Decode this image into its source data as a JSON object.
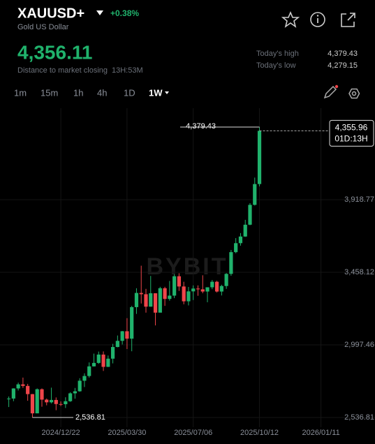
{
  "header": {
    "symbol": "XAUUSD+",
    "change": "+0.38%",
    "name": "Gold US Dollar",
    "price": "4,356.11",
    "closing_label": "Distance to market closing",
    "closing_time": "13H:53M",
    "stats": [
      {
        "label": "Today's high",
        "value": "4,379.43"
      },
      {
        "label": "Today's low",
        "value": "4,279.15"
      }
    ],
    "timeframes": [
      "1m",
      "15m",
      "1h",
      "4h",
      "1D",
      "1W"
    ]
  },
  "chart_data": {
    "type": "candlestick",
    "watermark": "BYBIT",
    "up_color": "#20b26c",
    "down_color": "#ef454a",
    "grid": true,
    "x": [
      "2024/10/06",
      "2024/10/13",
      "2024/10/20",
      "2024/10/27",
      "2024/11/03",
      "2024/11/10",
      "2024/11/17",
      "2024/11/24",
      "2024/12/01",
      "2024/12/08",
      "2024/12/15",
      "2024/12/22",
      "2024/12/29",
      "2025/01/05",
      "2025/01/12",
      "2025/01/19",
      "2025/01/26",
      "2025/02/02",
      "2025/02/09",
      "2025/02/16",
      "2025/02/23",
      "2025/03/02",
      "2025/03/09",
      "2025/03/16",
      "2025/03/23",
      "2025/03/30",
      "2025/04/06",
      "2025/04/13",
      "2025/04/20",
      "2025/04/27",
      "2025/05/04",
      "2025/05/11",
      "2025/05/18",
      "2025/05/25",
      "2025/06/01",
      "2025/06/08",
      "2025/06/15",
      "2025/06/22",
      "2025/06/29",
      "2025/07/06",
      "2025/07/13",
      "2025/07/20",
      "2025/07/27",
      "2025/08/03",
      "2025/08/10",
      "2025/08/17",
      "2025/08/24",
      "2025/08/31",
      "2025/09/07",
      "2025/09/14",
      "2025/09/21",
      "2025/09/28",
      "2025/10/05",
      "2025/10/12"
    ],
    "open": [
      2653,
      2657,
      2721,
      2747,
      2737,
      2685,
      2563,
      2716,
      2650,
      2633,
      2648,
      2622,
      2621,
      2640,
      2690,
      2703,
      2770,
      2800,
      2861,
      2883,
      2936,
      2858,
      2910,
      2984,
      3023,
      3084,
      3037,
      3237,
      3327,
      3319,
      3240,
      3325,
      3202,
      3357,
      3289,
      3310,
      3433,
      3368,
      3274,
      3337,
      3355,
      3350,
      3336,
      3363,
      3398,
      3336,
      3371,
      3448,
      3586,
      3643,
      3685,
      3760,
      3886,
      4018
    ],
    "high": [
      2670,
      2722,
      2758,
      2790,
      2750,
      2686,
      2721,
      2721,
      2657,
      2726,
      2664,
      2639,
      2665,
      2697,
      2724,
      2786,
      2817,
      2886,
      2942,
      2955,
      2956,
      2930,
      3004,
      3057,
      3086,
      3167,
      3245,
      3357,
      3500,
      3353,
      3435,
      3325,
      3366,
      3366,
      3403,
      3446,
      3452,
      3398,
      3365,
      3375,
      3375,
      3439,
      3363,
      3409,
      3404,
      3379,
      3453,
      3600,
      3675,
      3707,
      3791,
      3897,
      4059,
      4379.43
    ],
    "low": [
      2603,
      2640,
      2708,
      2724,
      2643,
      2536.81,
      2563,
      2605,
      2614,
      2626,
      2583,
      2609,
      2597,
      2636,
      2656,
      2700,
      2730,
      2790,
      2860,
      2877,
      2832,
      2857,
      2880,
      2982,
      3000,
      2971,
      2957,
      3194,
      3260,
      3202,
      3240,
      3121,
      3205,
      3245,
      3278,
      3294,
      3340,
      3255,
      3248,
      3282,
      3309,
      3325,
      3268,
      3351,
      3330,
      3311,
      3353,
      3436,
      3579,
      3627,
      3683,
      3757,
      3882,
      4003
    ],
    "close": [
      2657,
      2721,
      2747,
      2737,
      2685,
      2563,
      2716,
      2650,
      2633,
      2648,
      2622,
      2621,
      2640,
      2690,
      2703,
      2770,
      2800,
      2861,
      2883,
      2936,
      2858,
      2910,
      2984,
      3023,
      3084,
      3037,
      3237,
      3327,
      3319,
      3240,
      3325,
      3202,
      3357,
      3289,
      3310,
      3433,
      3368,
      3274,
      3337,
      3355,
      3350,
      3336,
      3363,
      3398,
      3336,
      3371,
      3448,
      3586,
      3643,
      3685,
      3760,
      3886,
      4018,
      4355.96
    ],
    "xlim": [
      "2024/09/23",
      "2026/04/01"
    ],
    "xticks": [
      "2024/12/22",
      "2025/03/30",
      "2025/07/06",
      "2025/10/12",
      "2026/01/11"
    ],
    "ylim": [
      2474.8,
      4499.3
    ],
    "yticks": [
      {
        "value": 2536.81,
        "label": "2,536.81"
      },
      {
        "value": 2997.46,
        "label": "2,997.46"
      },
      {
        "value": 3458.12,
        "label": "3,458.12"
      },
      {
        "value": 3918.77,
        "label": "3,918.77"
      }
    ],
    "max_marker": {
      "value": 4379.43,
      "label": "4,379.43"
    },
    "min_marker": {
      "value": 2536.81,
      "label": "2,536.81"
    },
    "last_price": {
      "value": 4355.96,
      "label": "4,355.96",
      "countdown": "01D:13H"
    }
  }
}
